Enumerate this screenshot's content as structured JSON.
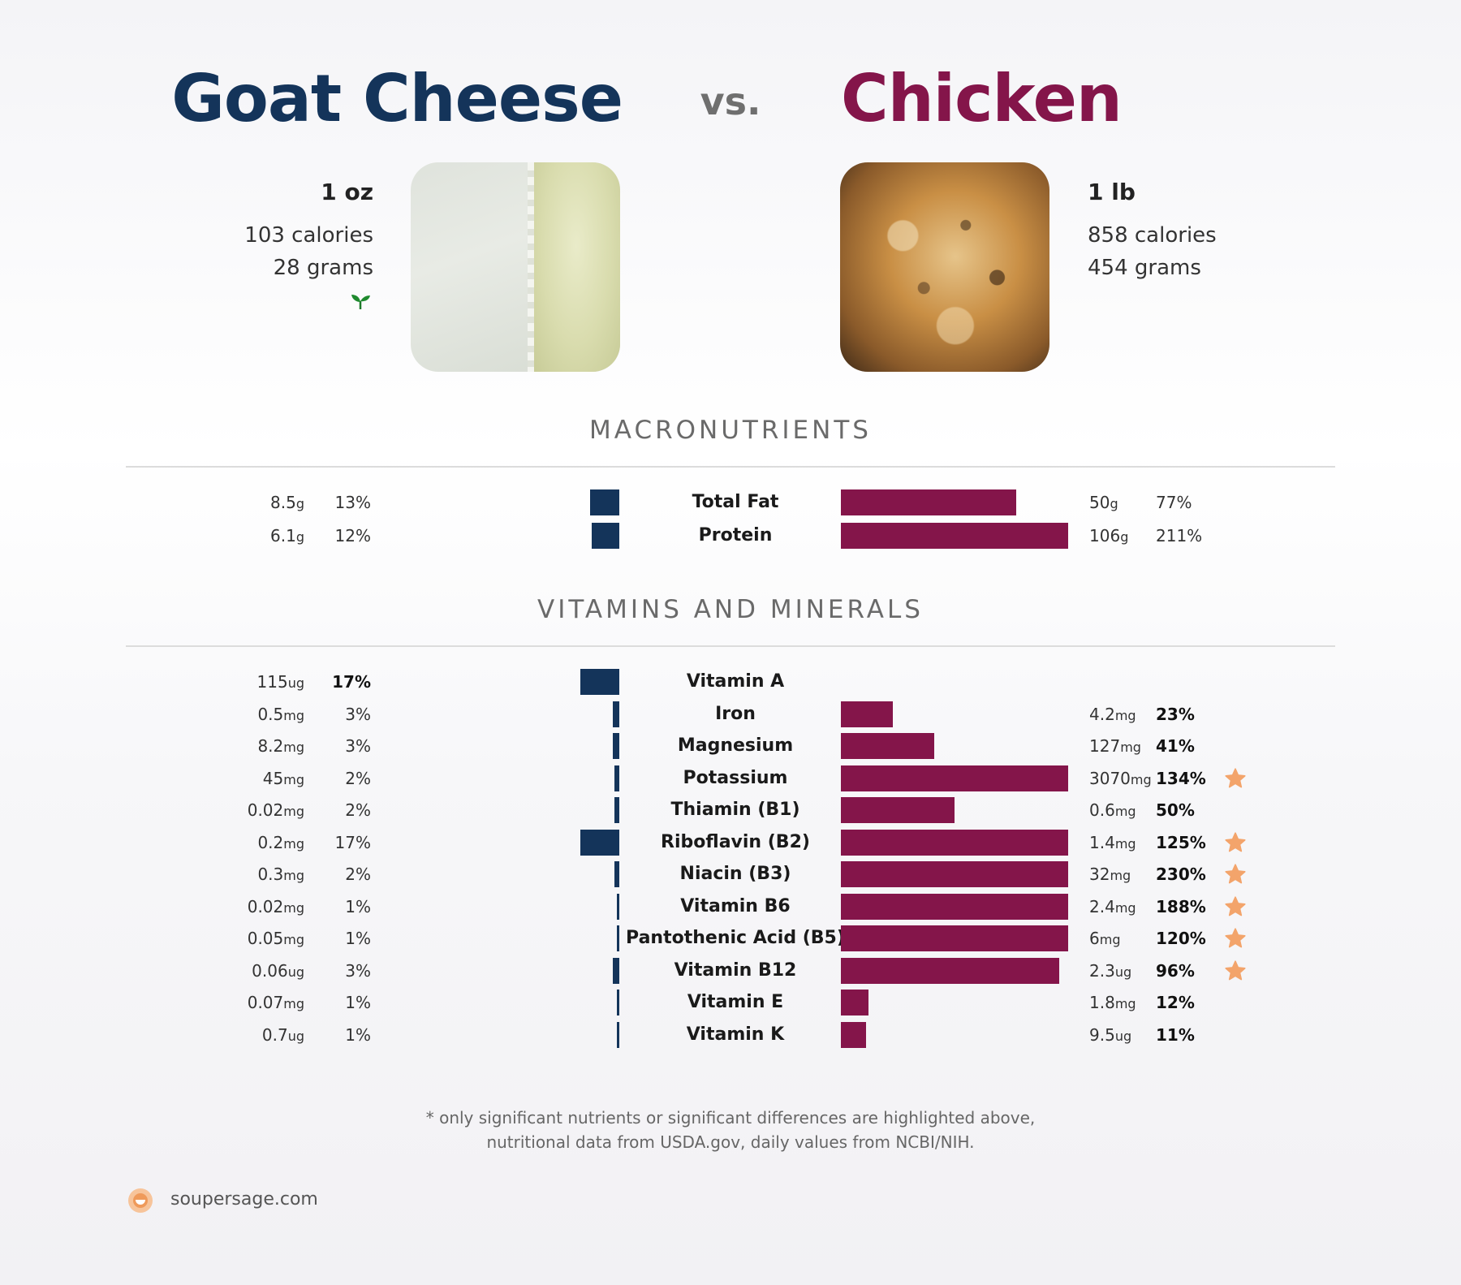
{
  "header": {
    "left_title": "Goat Cheese",
    "vs": "vs.",
    "right_title": "Chicken",
    "colors": {
      "left": "#14345a",
      "right": "#84154a"
    }
  },
  "left_food": {
    "serving": "1 oz",
    "calories": "103 calories",
    "grams": "28 grams",
    "icon": "sprout-icon"
  },
  "right_food": {
    "serving": "1 lb",
    "calories": "858 calories",
    "grams": "454 grams"
  },
  "sections": {
    "macros": "MACRONUTRIENTS",
    "vitamins": "VITAMINS AND MINERALS"
  },
  "chart_data": [
    {
      "type": "bar",
      "title": "MACRONUTRIENTS",
      "categories": [
        "Total Fat",
        "Protein"
      ],
      "series": [
        {
          "name": "Goat Cheese",
          "amounts": [
            "8.5",
            "6.1"
          ],
          "units": [
            "g",
            "g"
          ],
          "dv_labels": [
            "13%",
            "12%"
          ],
          "values": [
            13,
            12
          ]
        },
        {
          "name": "Chicken",
          "amounts": [
            "50",
            "106"
          ],
          "units": [
            "g",
            "g"
          ],
          "dv_labels": [
            "77%",
            "211%"
          ],
          "values": [
            77,
            211
          ]
        }
      ],
      "bar_cap_percent": 100
    },
    {
      "type": "bar",
      "title": "VITAMINS AND MINERALS",
      "categories": [
        "Vitamin A",
        "Iron",
        "Magnesium",
        "Potassium",
        "Thiamin (B1)",
        "Riboflavin (B2)",
        "Niacin (B3)",
        "Vitamin B6",
        "Pantothenic Acid (B5)",
        "Vitamin B12",
        "Vitamin E",
        "Vitamin K"
      ],
      "series": [
        {
          "name": "Goat Cheese",
          "amounts": [
            "115",
            "0.5",
            "8.2",
            "45",
            "0.02",
            "0.2",
            "0.3",
            "0.02",
            "0.05",
            "0.06",
            "0.07",
            "0.7"
          ],
          "units": [
            "ug",
            "mg",
            "mg",
            "mg",
            "mg",
            "mg",
            "mg",
            "mg",
            "mg",
            "ug",
            "mg",
            "ug"
          ],
          "dv_labels": [
            "17%",
            "3%",
            "3%",
            "2%",
            "2%",
            "17%",
            "2%",
            "1%",
            "1%",
            "3%",
            "1%",
            "1%"
          ],
          "values": [
            17,
            3,
            3,
            2,
            2,
            17,
            2,
            1,
            1,
            3,
            1,
            1
          ],
          "bold": [
            true,
            false,
            false,
            false,
            false,
            false,
            false,
            false,
            false,
            false,
            false,
            false
          ]
        },
        {
          "name": "Chicken",
          "amounts": [
            "",
            "4.2",
            "127",
            "3070",
            "0.6",
            "1.4",
            "32",
            "2.4",
            "6",
            "2.3",
            "1.8",
            "9.5"
          ],
          "units": [
            "",
            "mg",
            "mg",
            "mg",
            "mg",
            "mg",
            "mg",
            "mg",
            "mg",
            "ug",
            "mg",
            "ug"
          ],
          "dv_labels": [
            "",
            "23%",
            "41%",
            "134%",
            "50%",
            "125%",
            "230%",
            "188%",
            "120%",
            "96%",
            "12%",
            "11%"
          ],
          "values": [
            0,
            23,
            41,
            134,
            50,
            125,
            230,
            188,
            120,
            96,
            12,
            11
          ],
          "bold": [
            false,
            true,
            true,
            true,
            true,
            true,
            true,
            true,
            true,
            true,
            true,
            true
          ],
          "starred": [
            false,
            false,
            false,
            true,
            false,
            true,
            true,
            true,
            true,
            true,
            false,
            false
          ]
        }
      ],
      "bar_cap_percent": 100
    }
  ],
  "footer": {
    "note_line1": "* only significant nutrients or significant differences are highlighted above,",
    "note_line2": "nutritional data from USDA.gov, daily values from NCBI/NIH.",
    "site": "soupersage.com",
    "star_color": "#f3a46b"
  }
}
